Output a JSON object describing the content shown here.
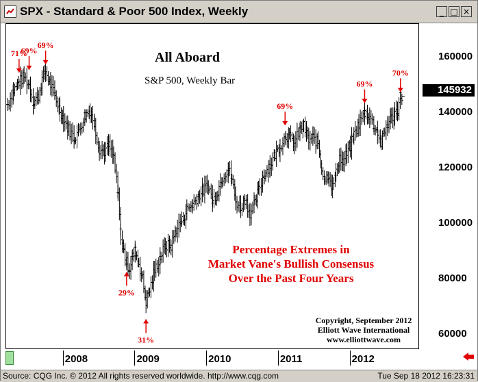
{
  "window": {
    "title": "SPX - Standard & Poor 500 Index, Weekly",
    "minimize_icon": "minimize-icon",
    "maximize_icon": "maximize-icon",
    "close_icon": "close-icon"
  },
  "annotations": {
    "heading": "All Aboard",
    "subheading": "S&P 500, Weekly Bar",
    "note_lines": [
      "Percentage Extremes in",
      "Market Vane's Bullish Consensus",
      "Over the Past Four Years"
    ],
    "copyright_lines": [
      "Copyright, September 2012",
      "Elliott Wave International",
      "www.elliottwave.com"
    ]
  },
  "current_price": "145932",
  "status": {
    "source": "Source: CQG Inc. © 2012 All rights reserved worldwide. http://www.cqg.com",
    "datetime": "Tue Sep 18 2012 16:23:31"
  },
  "colors": {
    "bars": "#000000",
    "annotation_red": "#e00000",
    "titlebar": "#d4d0c8",
    "scroll_thumb": "#9fe09f"
  },
  "chart_data": {
    "type": "bar",
    "title": "S&P 500, Weekly Bar",
    "series_name": "SPX weekly",
    "yaxis_ticks": [
      60000,
      80000,
      100000,
      120000,
      140000,
      160000
    ],
    "yaxis_tick_labels": [
      "60000",
      "80000",
      "100000",
      "120000",
      "140000",
      "160000"
    ],
    "ylim": [
      55000,
      172000
    ],
    "xaxis_labels": [
      "2008",
      "2009",
      "2010",
      "2011",
      "2012"
    ],
    "xaxis_label_times": [
      2008.0,
      2009.0,
      2010.0,
      2011.0,
      2012.0
    ],
    "xlim": [
      2007.2,
      2012.95
    ],
    "weekly_path": [
      [
        2007.22,
        143000
      ],
      [
        2007.3,
        148000
      ],
      [
        2007.38,
        151000
      ],
      [
        2007.45,
        153000
      ],
      [
        2007.52,
        150000
      ],
      [
        2007.58,
        144000
      ],
      [
        2007.65,
        146000
      ],
      [
        2007.7,
        152000
      ],
      [
        2007.75,
        155000
      ],
      [
        2007.82,
        150000
      ],
      [
        2007.88,
        146000
      ],
      [
        2007.95,
        141000
      ],
      [
        2008.0,
        138000
      ],
      [
        2008.07,
        134000
      ],
      [
        2008.15,
        131000
      ],
      [
        2008.22,
        134000
      ],
      [
        2008.3,
        139000
      ],
      [
        2008.37,
        141000
      ],
      [
        2008.43,
        136000
      ],
      [
        2008.5,
        127000
      ],
      [
        2008.57,
        126000
      ],
      [
        2008.63,
        128000
      ],
      [
        2008.7,
        124000
      ],
      [
        2008.76,
        110000
      ],
      [
        2008.8,
        96000
      ],
      [
        2008.84,
        90000
      ],
      [
        2008.88,
        86000
      ],
      [
        2008.92,
        84000
      ],
      [
        2008.96,
        88000
      ],
      [
        2009.0,
        90000
      ],
      [
        2009.05,
        86000
      ],
      [
        2009.1,
        80000
      ],
      [
        2009.15,
        72000
      ],
      [
        2009.2,
        76000
      ],
      [
        2009.27,
        83000
      ],
      [
        2009.35,
        88000
      ],
      [
        2009.42,
        92000
      ],
      [
        2009.5,
        92000
      ],
      [
        2009.57,
        98000
      ],
      [
        2009.65,
        101000
      ],
      [
        2009.72,
        105000
      ],
      [
        2009.8,
        107000
      ],
      [
        2009.88,
        110000
      ],
      [
        2009.95,
        112000
      ],
      [
        2010.02,
        114000
      ],
      [
        2010.08,
        108000
      ],
      [
        2010.15,
        112000
      ],
      [
        2010.22,
        117000
      ],
      [
        2010.3,
        120000
      ],
      [
        2010.35,
        116000
      ],
      [
        2010.4,
        108000
      ],
      [
        2010.47,
        106000
      ],
      [
        2010.53,
        109000
      ],
      [
        2010.6,
        104000
      ],
      [
        2010.67,
        107000
      ],
      [
        2010.72,
        112000
      ],
      [
        2010.8,
        118000
      ],
      [
        2010.88,
        121000
      ],
      [
        2010.95,
        125000
      ],
      [
        2011.02,
        128000
      ],
      [
        2011.1,
        132000
      ],
      [
        2011.15,
        131000
      ],
      [
        2011.22,
        129000
      ],
      [
        2011.3,
        134000
      ],
      [
        2011.35,
        135000
      ],
      [
        2011.42,
        130000
      ],
      [
        2011.48,
        131000
      ],
      [
        2011.55,
        129000
      ],
      [
        2011.6,
        120000
      ],
      [
        2011.65,
        116000
      ],
      [
        2011.7,
        118000
      ],
      [
        2011.75,
        113000
      ],
      [
        2011.8,
        118000
      ],
      [
        2011.85,
        124000
      ],
      [
        2011.9,
        122000
      ],
      [
        2011.95,
        125000
      ],
      [
        2012.0,
        128000
      ],
      [
        2012.05,
        132000
      ],
      [
        2012.12,
        136000
      ],
      [
        2012.2,
        140000
      ],
      [
        2012.27,
        139000
      ],
      [
        2012.33,
        135000
      ],
      [
        2012.38,
        133000
      ],
      [
        2012.43,
        129000
      ],
      [
        2012.48,
        133000
      ],
      [
        2012.52,
        136000
      ],
      [
        2012.57,
        138000
      ],
      [
        2012.62,
        140000
      ],
      [
        2012.66,
        141000
      ],
      [
        2012.7,
        146000
      ],
      [
        2012.72,
        145932
      ]
    ],
    "callouts": [
      {
        "label": "71%",
        "time": 2007.38,
        "value": 153000,
        "position": "above"
      },
      {
        "label": "69%",
        "time": 2007.52,
        "value": 154000,
        "position": "above"
      },
      {
        "label": "69%",
        "time": 2007.75,
        "value": 156000,
        "position": "above"
      },
      {
        "label": "29%",
        "time": 2008.88,
        "value": 84000,
        "position": "below"
      },
      {
        "label": "31%",
        "time": 2009.15,
        "value": 67000,
        "position": "below"
      },
      {
        "label": "69%",
        "time": 2011.09,
        "value": 134000,
        "position": "above"
      },
      {
        "label": "69%",
        "time": 2012.2,
        "value": 142000,
        "position": "above"
      },
      {
        "label": "70%",
        "time": 2012.7,
        "value": 146000,
        "position": "above"
      }
    ],
    "last_value": 145932
  }
}
